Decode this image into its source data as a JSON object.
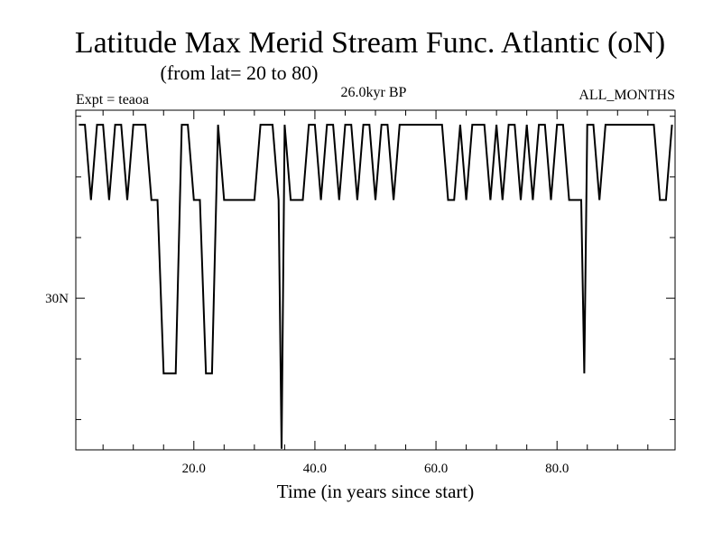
{
  "chart_data": {
    "type": "line",
    "title": "Latitude Max Merid Stream Func. Atlantic (oN)",
    "subtitle": "(from lat= 20 to 80)",
    "annotations": {
      "experiment": "Expt = teaoa",
      "period": "26.0kyr BP",
      "months": "ALL_MONTHS"
    },
    "xlabel": "Time (in years since start)",
    "ylabel": "",
    "xlim": [
      0.5,
      99.5
    ],
    "ylim": [
      17.5,
      45.5
    ],
    "x_ticks": [
      20,
      40,
      60,
      80
    ],
    "x_tick_labels": [
      "20.0",
      "40.0",
      "60.0",
      "80.0"
    ],
    "x_minor_ticks": [
      5,
      10,
      15,
      25,
      30,
      35,
      45,
      50,
      55,
      65,
      70,
      75,
      85,
      90,
      95
    ],
    "y_ticks": [
      30
    ],
    "y_tick_labels": [
      "30N"
    ],
    "y_minor_ticks": [
      20,
      25,
      35,
      40,
      45
    ],
    "grid": false,
    "line_color": "#000000",
    "series": [
      {
        "name": "latitude_max",
        "x": [
          1,
          2,
          3,
          4,
          5,
          6,
          7,
          8,
          9,
          10,
          11,
          12,
          13,
          14,
          15,
          16,
          17,
          18,
          19,
          20,
          21,
          22,
          23,
          24,
          25,
          26,
          27,
          28,
          29,
          30,
          31,
          32,
          33,
          34,
          34.5,
          35,
          36,
          37,
          38,
          39,
          40,
          41,
          42,
          43,
          44,
          45,
          46,
          47,
          48,
          49,
          50,
          51,
          52,
          53,
          54,
          55,
          56,
          57,
          58,
          59,
          60,
          61,
          62,
          63,
          64,
          65,
          66,
          67,
          68,
          69,
          70,
          71,
          72,
          73,
          74,
          75,
          76,
          77,
          78,
          79,
          80,
          81,
          82,
          83,
          84,
          84.5,
          85,
          86,
          87,
          88,
          89,
          90,
          91,
          92,
          93,
          94,
          95,
          96,
          97,
          98,
          99
        ],
        "values": [
          44.3,
          44.3,
          38.1,
          44.3,
          44.3,
          38.1,
          44.3,
          44.3,
          38.1,
          44.3,
          44.3,
          44.3,
          38.1,
          38.1,
          23.8,
          23.8,
          23.8,
          44.3,
          44.3,
          38.1,
          38.1,
          23.8,
          23.8,
          44.3,
          38.1,
          38.1,
          38.1,
          38.1,
          38.1,
          38.1,
          44.3,
          44.3,
          44.3,
          38.1,
          17.6,
          44.3,
          38.1,
          38.1,
          38.1,
          44.3,
          44.3,
          38.1,
          44.3,
          44.3,
          38.1,
          44.3,
          44.3,
          38.1,
          44.3,
          44.3,
          38.1,
          44.3,
          44.3,
          38.1,
          44.3,
          44.3,
          44.3,
          44.3,
          44.3,
          44.3,
          44.3,
          44.3,
          38.1,
          38.1,
          44.3,
          38.1,
          44.3,
          44.3,
          44.3,
          38.1,
          44.3,
          38.1,
          44.3,
          44.3,
          38.1,
          44.3,
          38.1,
          44.3,
          44.3,
          38.1,
          44.3,
          44.3,
          38.1,
          38.1,
          38.1,
          23.8,
          44.3,
          44.3,
          38.1,
          44.3,
          44.3,
          44.3,
          44.3,
          44.3,
          44.3,
          44.3,
          44.3,
          44.3,
          38.1,
          38.1,
          44.3
        ]
      }
    ]
  }
}
